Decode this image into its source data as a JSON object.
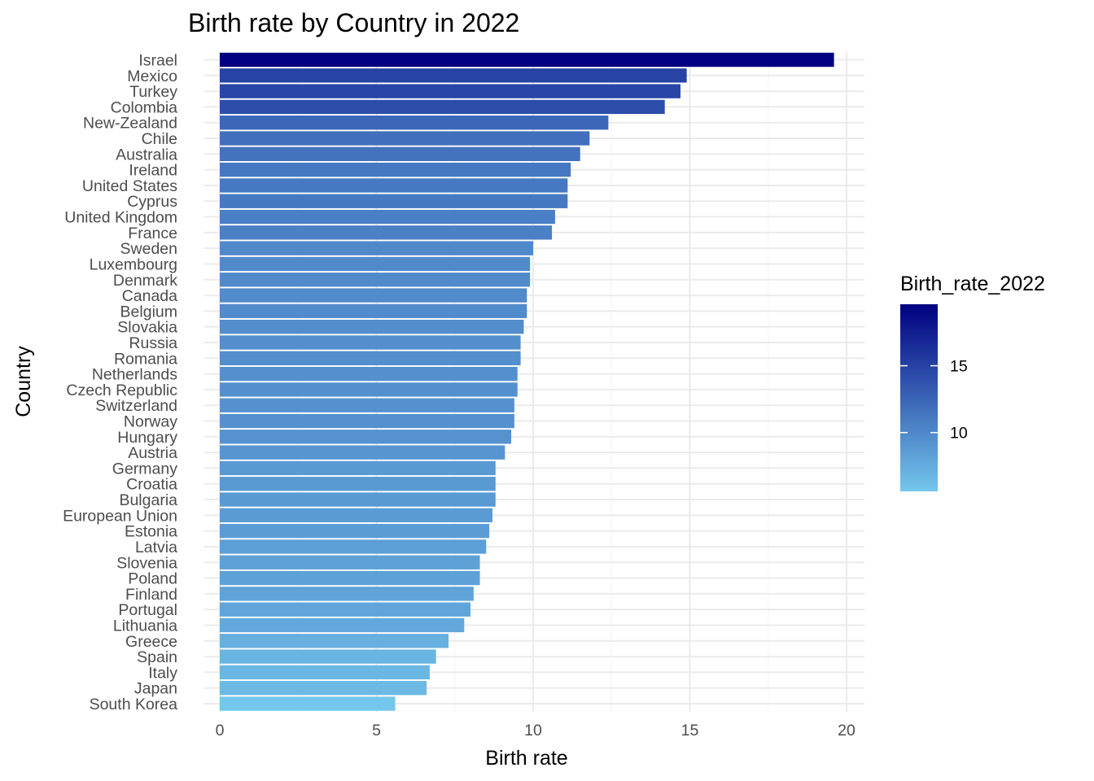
{
  "chart_data": {
    "type": "bar",
    "orientation": "horizontal",
    "title": "Birth rate by Country in 2022",
    "xlabel": "Birth rate",
    "ylabel": "Country",
    "xlim": [
      0,
      20.6
    ],
    "x_ticks": [
      0,
      5,
      10,
      15,
      20
    ],
    "grid": true,
    "categories": [
      "Israel",
      "Mexico",
      "Turkey",
      "Colombia",
      "New-Zealand",
      "Chile",
      "Australia",
      "Ireland",
      "United States",
      "Cyprus",
      "United Kingdom",
      "France",
      "Sweden",
      "Luxembourg",
      "Denmark",
      "Canada",
      "Belgium",
      "Slovakia",
      "Russia",
      "Romania",
      "Netherlands",
      "Czech Republic",
      "Switzerland",
      "Norway",
      "Hungary",
      "Austria",
      "Germany",
      "Croatia",
      "Bulgaria",
      "European Union",
      "Estonia",
      "Latvia",
      "Slovenia",
      "Poland",
      "Finland",
      "Portugal",
      "Lithuania",
      "Greece",
      "Spain",
      "Italy",
      "Japan",
      "South Korea"
    ],
    "values": [
      19.6,
      14.9,
      14.7,
      14.2,
      12.4,
      11.8,
      11.5,
      11.2,
      11.1,
      11.1,
      10.7,
      10.6,
      10.0,
      9.9,
      9.9,
      9.8,
      9.8,
      9.7,
      9.6,
      9.6,
      9.5,
      9.5,
      9.4,
      9.4,
      9.3,
      9.1,
      8.8,
      8.8,
      8.8,
      8.7,
      8.6,
      8.5,
      8.3,
      8.3,
      8.1,
      8.0,
      7.8,
      7.3,
      6.9,
      6.7,
      6.6,
      5.6
    ],
    "legend": {
      "title": "Birth_rate_2022",
      "placement": "right",
      "type": "colorbar",
      "range": [
        5.6,
        19.6
      ],
      "ticks": [
        10,
        15
      ],
      "color_low": "#74c7ec",
      "color_high": "#000080"
    }
  }
}
